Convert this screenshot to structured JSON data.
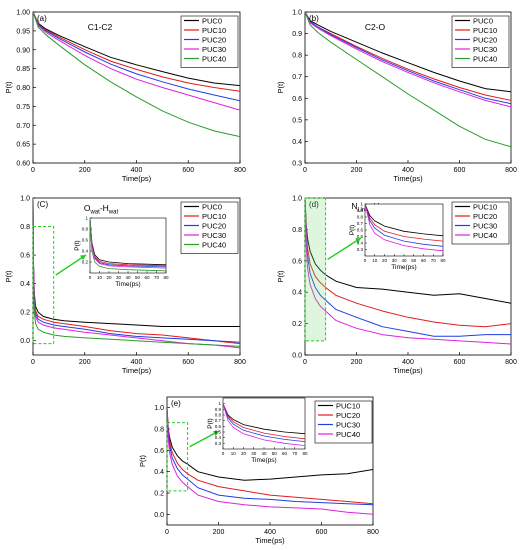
{
  "chart_data": [
    {
      "type": "line",
      "panel_label": "(a)",
      "title": "C1-C2",
      "xlabel": "Time(ps)",
      "ylabel": "P(t)",
      "xlim": [
        0,
        800
      ],
      "ylim": [
        0.6,
        1.0
      ],
      "xticks": [
        0,
        200,
        400,
        600,
        800
      ],
      "yticks": [
        0.6,
        0.65,
        0.7,
        0.75,
        0.8,
        0.85,
        0.9,
        0.95,
        1.0
      ],
      "ytick_decimals": 2,
      "legend": "top-right",
      "series": [
        {
          "name": "PUC0",
          "color": "#000000",
          "x": [
            0,
            20,
            50,
            100,
            200,
            300,
            400,
            500,
            600,
            700,
            800
          ],
          "y": [
            1.0,
            0.97,
            0.955,
            0.938,
            0.908,
            0.88,
            0.86,
            0.842,
            0.825,
            0.812,
            0.805
          ]
        },
        {
          "name": "PUC10",
          "color": "#e41a1c",
          "x": [
            0,
            20,
            50,
            100,
            200,
            300,
            400,
            500,
            600,
            700,
            800
          ],
          "y": [
            1.0,
            0.968,
            0.952,
            0.934,
            0.9,
            0.87,
            0.848,
            0.828,
            0.812,
            0.8,
            0.79
          ]
        },
        {
          "name": "PUC20",
          "color": "#1f3fe0",
          "x": [
            0,
            20,
            50,
            100,
            200,
            300,
            400,
            500,
            600,
            700,
            800
          ],
          "y": [
            1.0,
            0.966,
            0.95,
            0.93,
            0.894,
            0.862,
            0.836,
            0.815,
            0.796,
            0.78,
            0.765
          ]
        },
        {
          "name": "PUC30",
          "color": "#e020e0",
          "x": [
            0,
            20,
            50,
            100,
            200,
            300,
            400,
            500,
            600,
            700,
            800
          ],
          "y": [
            1.0,
            0.964,
            0.946,
            0.925,
            0.885,
            0.85,
            0.822,
            0.8,
            0.78,
            0.76,
            0.74
          ]
        },
        {
          "name": "PUC40",
          "color": "#2a9d2a",
          "x": [
            0,
            20,
            50,
            100,
            200,
            300,
            400,
            500,
            600,
            700,
            800
          ],
          "y": [
            1.0,
            0.96,
            0.94,
            0.912,
            0.86,
            0.815,
            0.775,
            0.738,
            0.708,
            0.685,
            0.67
          ]
        }
      ]
    },
    {
      "type": "line",
      "panel_label": "(b)",
      "title": "C2-O",
      "xlabel": "Time(ps)",
      "ylabel": "P(t)",
      "xlim": [
        0,
        800
      ],
      "ylim": [
        0.3,
        1.0
      ],
      "xticks": [
        0,
        200,
        400,
        600,
        800
      ],
      "yticks": [
        0.3,
        0.4,
        0.5,
        0.6,
        0.7,
        0.8,
        0.9,
        1.0
      ],
      "ytick_decimals": 1,
      "legend": "top-right",
      "series": [
        {
          "name": "PUC0",
          "color": "#000000",
          "x": [
            0,
            20,
            50,
            100,
            200,
            300,
            400,
            500,
            600,
            700,
            800
          ],
          "y": [
            1.0,
            0.96,
            0.94,
            0.91,
            0.86,
            0.81,
            0.765,
            0.72,
            0.68,
            0.645,
            0.63
          ]
        },
        {
          "name": "PUC10",
          "color": "#e41a1c",
          "x": [
            0,
            20,
            50,
            100,
            200,
            300,
            400,
            500,
            600,
            700,
            800
          ],
          "y": [
            1.0,
            0.955,
            0.93,
            0.9,
            0.84,
            0.785,
            0.735,
            0.69,
            0.65,
            0.615,
            0.59
          ]
        },
        {
          "name": "PUC20",
          "color": "#1f3fe0",
          "x": [
            0,
            20,
            50,
            100,
            200,
            300,
            400,
            500,
            600,
            700,
            800
          ],
          "y": [
            1.0,
            0.955,
            0.93,
            0.895,
            0.835,
            0.778,
            0.728,
            0.68,
            0.64,
            0.6,
            0.575
          ]
        },
        {
          "name": "PUC30",
          "color": "#e020e0",
          "x": [
            0,
            20,
            50,
            100,
            200,
            300,
            400,
            500,
            600,
            700,
            800
          ],
          "y": [
            1.0,
            0.95,
            0.925,
            0.89,
            0.828,
            0.77,
            0.72,
            0.672,
            0.63,
            0.59,
            0.56
          ]
        },
        {
          "name": "PUC40",
          "color": "#2a9d2a",
          "x": [
            0,
            20,
            50,
            100,
            200,
            300,
            400,
            500,
            600,
            700,
            800
          ],
          "y": [
            1.0,
            0.94,
            0.905,
            0.86,
            0.78,
            0.7,
            0.62,
            0.545,
            0.47,
            0.41,
            0.375
          ]
        }
      ]
    },
    {
      "type": "line",
      "panel_label": "(C)",
      "title_main": "O",
      "title_sub": "wat",
      "title_sep": "-H",
      "title_sub2": "wat",
      "xlabel": "Time(ps)",
      "ylabel": "P(t)",
      "xlim": [
        0,
        800
      ],
      "ylim": [
        -0.1,
        1.0
      ],
      "xticks": [
        0,
        200,
        400,
        600,
        800
      ],
      "yticks": [
        0.0,
        0.2,
        0.4,
        0.6,
        0.8,
        1.0
      ],
      "ytick_decimals": 1,
      "legend": "top-right",
      "zoom_box": {
        "x": [
          0,
          80
        ],
        "y": [
          -0.02,
          0.8
        ]
      },
      "inset": {
        "xlabel": "Time(ps)",
        "ylabel": "P(t)",
        "xlim": [
          0,
          80
        ],
        "ylim": [
          0.0,
          1.0
        ],
        "xticks": [
          0,
          10,
          20,
          30,
          40,
          50,
          60,
          70,
          80
        ],
        "yticks": [
          0.2,
          0.4,
          0.6,
          0.8,
          1.0
        ]
      },
      "series": [
        {
          "name": "PUC0",
          "color": "#000000",
          "x": [
            0,
            2,
            5,
            10,
            20,
            40,
            60,
            80,
            120,
            200,
            300,
            400,
            500,
            600,
            700,
            800
          ],
          "y": [
            1.0,
            0.55,
            0.33,
            0.24,
            0.2,
            0.17,
            0.16,
            0.15,
            0.14,
            0.13,
            0.12,
            0.11,
            0.1,
            0.1,
            0.1,
            0.1
          ]
        },
        {
          "name": "PUC10",
          "color": "#e41a1c",
          "x": [
            0,
            2,
            5,
            10,
            20,
            40,
            60,
            80,
            120,
            200,
            300,
            400,
            500,
            600,
            700,
            800
          ],
          "y": [
            1.0,
            0.52,
            0.3,
            0.21,
            0.17,
            0.15,
            0.14,
            0.13,
            0.12,
            0.1,
            0.07,
            0.05,
            0.04,
            0.02,
            0.0,
            -0.02
          ]
        },
        {
          "name": "PUC20",
          "color": "#1f3fe0",
          "x": [
            0,
            2,
            5,
            10,
            20,
            40,
            60,
            80,
            120,
            200,
            300,
            400,
            500,
            600,
            700,
            800
          ],
          "y": [
            1.0,
            0.5,
            0.28,
            0.19,
            0.15,
            0.13,
            0.12,
            0.11,
            0.1,
            0.08,
            0.05,
            0.03,
            0.02,
            0.01,
            0.0,
            -0.01
          ]
        },
        {
          "name": "PUC30",
          "color": "#e020e0",
          "x": [
            0,
            2,
            5,
            10,
            20,
            40,
            60,
            80,
            120,
            200,
            300,
            400,
            500,
            600,
            700,
            800
          ],
          "y": [
            1.0,
            0.48,
            0.26,
            0.17,
            0.13,
            0.11,
            0.1,
            0.09,
            0.08,
            0.06,
            0.04,
            0.02,
            0.0,
            -0.02,
            -0.03,
            -0.05
          ]
        },
        {
          "name": "PUC40",
          "color": "#2a9d2a",
          "x": [
            0,
            2,
            5,
            10,
            20,
            40,
            60,
            80,
            120,
            200,
            300,
            400,
            500,
            600,
            700,
            800
          ],
          "y": [
            1.0,
            0.4,
            0.2,
            0.12,
            0.08,
            0.06,
            0.05,
            0.04,
            0.03,
            0.02,
            0.01,
            0.0,
            -0.01,
            -0.02,
            -0.03,
            -0.04
          ]
        }
      ]
    },
    {
      "type": "line",
      "panel_label": "(d)",
      "title_main": "N",
      "title_sub": "Urea",
      "title_sep": "-H",
      "title_sub2": "Urea",
      "xlabel": "Time(ps)",
      "ylabel": "P(t)",
      "xlim": [
        0,
        800
      ],
      "ylim": [
        0.0,
        1.0
      ],
      "xticks": [
        0,
        200,
        400,
        600,
        800
      ],
      "yticks": [
        0.0,
        0.2,
        0.4,
        0.6,
        0.8,
        1.0
      ],
      "ytick_decimals": 1,
      "legend": "top-right",
      "zoom_box": {
        "x": [
          0,
          80
        ],
        "y": [
          0.09,
          1.0
        ]
      },
      "inset": {
        "xlabel": "Time(ps)",
        "ylabel": "P(t)",
        "xlim": [
          0,
          80
        ],
        "ylim": [
          0.2,
          1.0
        ],
        "xticks": [
          0,
          10,
          20,
          30,
          40,
          50,
          60,
          70,
          80
        ],
        "yticks": [
          0.3,
          0.4,
          0.5,
          0.6,
          0.7,
          0.8,
          0.9,
          1.0
        ]
      },
      "series": [
        {
          "name": "PUC10",
          "color": "#000000",
          "x": [
            0,
            5,
            10,
            20,
            40,
            60,
            80,
            120,
            200,
            300,
            400,
            500,
            600,
            700,
            800
          ],
          "y": [
            1.0,
            0.82,
            0.74,
            0.66,
            0.58,
            0.54,
            0.51,
            0.47,
            0.43,
            0.42,
            0.4,
            0.38,
            0.39,
            0.36,
            0.33
          ]
        },
        {
          "name": "PUC20",
          "color": "#e41a1c",
          "x": [
            0,
            5,
            10,
            20,
            40,
            60,
            80,
            120,
            200,
            300,
            400,
            500,
            600,
            700,
            800
          ],
          "y": [
            1.0,
            0.78,
            0.68,
            0.58,
            0.5,
            0.46,
            0.43,
            0.38,
            0.33,
            0.28,
            0.24,
            0.21,
            0.19,
            0.18,
            0.2
          ]
        },
        {
          "name": "PUC30",
          "color": "#1f3fe0",
          "x": [
            0,
            5,
            10,
            20,
            40,
            60,
            80,
            120,
            200,
            300,
            400,
            500,
            600,
            700,
            800
          ],
          "y": [
            1.0,
            0.74,
            0.63,
            0.52,
            0.43,
            0.38,
            0.35,
            0.29,
            0.24,
            0.18,
            0.15,
            0.12,
            0.12,
            0.13,
            0.13
          ]
        },
        {
          "name": "PUC40",
          "color": "#e020e0",
          "x": [
            0,
            5,
            10,
            20,
            40,
            60,
            80,
            120,
            200,
            300,
            400,
            500,
            600,
            700,
            800
          ],
          "y": [
            1.0,
            0.68,
            0.55,
            0.45,
            0.36,
            0.31,
            0.28,
            0.22,
            0.17,
            0.13,
            0.11,
            0.1,
            0.09,
            0.08,
            0.07
          ]
        }
      ]
    },
    {
      "type": "line",
      "panel_label": "(e)",
      "title_main": "N",
      "title_sub": "Cap",
      "title_sep": "-H",
      "title_sub2": "Cap",
      "xlabel": "Time(ps)",
      "ylabel": "P(t)",
      "xlim": [
        0,
        800
      ],
      "ylim": [
        -0.1,
        1.1
      ],
      "xticks": [
        0,
        200,
        400,
        600,
        800
      ],
      "yticks": [
        0.0,
        0.2,
        0.4,
        0.6,
        0.8,
        1.0
      ],
      "ytick_decimals": 1,
      "legend": "top-right",
      "zoom_box": {
        "x": [
          0,
          80
        ],
        "y": [
          0.22,
          0.86
        ]
      },
      "inset": {
        "xlabel": "Time(ps)",
        "ylabel": "P(t)",
        "xlim": [
          0,
          80
        ],
        "ylim": [
          0.2,
          1.1
        ],
        "xticks": [
          0,
          10,
          20,
          30,
          40,
          50,
          60,
          70,
          80
        ],
        "yticks": [
          0.3,
          0.4,
          0.5,
          0.6,
          0.7,
          0.8,
          0.9,
          1.0
        ]
      },
      "series": [
        {
          "name": "PUC10",
          "color": "#000000",
          "x": [
            0,
            5,
            10,
            20,
            40,
            60,
            80,
            120,
            200,
            300,
            400,
            500,
            600,
            700,
            800
          ],
          "y": [
            1.0,
            0.8,
            0.72,
            0.63,
            0.55,
            0.5,
            0.47,
            0.4,
            0.35,
            0.32,
            0.33,
            0.35,
            0.37,
            0.38,
            0.42
          ]
        },
        {
          "name": "PUC20",
          "color": "#e41a1c",
          "x": [
            0,
            5,
            10,
            20,
            40,
            60,
            80,
            120,
            200,
            300,
            400,
            500,
            600,
            700,
            800
          ],
          "y": [
            1.0,
            0.78,
            0.68,
            0.58,
            0.48,
            0.42,
            0.38,
            0.32,
            0.26,
            0.22,
            0.18,
            0.16,
            0.14,
            0.12,
            0.1
          ]
        },
        {
          "name": "PUC30",
          "color": "#1f3fe0",
          "x": [
            0,
            5,
            10,
            20,
            40,
            60,
            80,
            120,
            200,
            300,
            400,
            500,
            600,
            700,
            800
          ],
          "y": [
            1.0,
            0.75,
            0.64,
            0.53,
            0.43,
            0.37,
            0.33,
            0.25,
            0.18,
            0.15,
            0.14,
            0.12,
            0.11,
            0.1,
            0.09
          ]
        },
        {
          "name": "PUC40",
          "color": "#e020e0",
          "x": [
            0,
            5,
            10,
            20,
            40,
            60,
            80,
            120,
            200,
            300,
            400,
            500,
            600,
            700,
            800
          ],
          "y": [
            1.0,
            0.7,
            0.58,
            0.47,
            0.36,
            0.3,
            0.26,
            0.18,
            0.12,
            0.09,
            0.07,
            0.06,
            0.05,
            0.02,
            0.0
          ]
        }
      ]
    }
  ]
}
